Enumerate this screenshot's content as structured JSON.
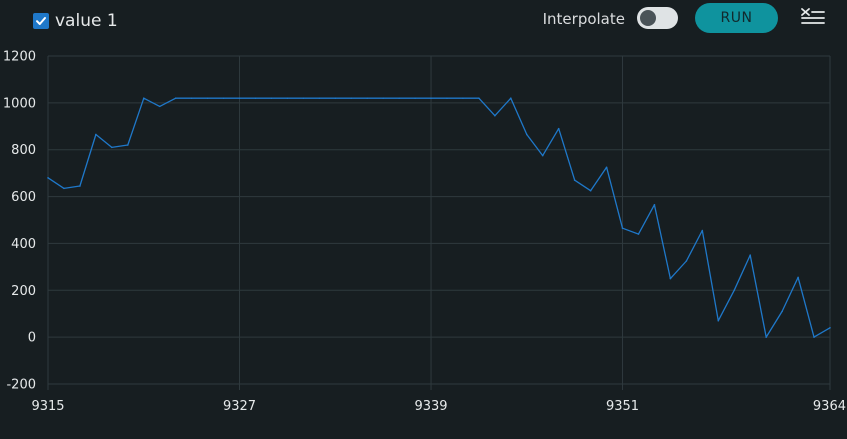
{
  "toolbar": {
    "series_label": "value 1",
    "series_checked": true,
    "interpolate_label": "Interpolate",
    "interpolate_on": false,
    "run_label": "RUN"
  },
  "colors": {
    "background": "#171e21",
    "grid": "#2f3a3e",
    "series": "#1f78c9",
    "accent": "#0f939e",
    "checkbox": "#1f78c9"
  },
  "icons": {
    "checkbox": "check-icon",
    "clear": "clear-list-icon"
  },
  "chart_data": {
    "type": "line",
    "title": "",
    "xlabel": "",
    "ylabel": "",
    "xlim": [
      9315,
      9364
    ],
    "ylim": [
      -200,
      1200
    ],
    "x_ticks": [
      9315,
      9327,
      9339,
      9351,
      9364
    ],
    "y_ticks": [
      -200,
      0,
      200,
      400,
      600,
      800,
      1000,
      1200
    ],
    "grid": true,
    "legend": "top-left",
    "series": [
      {
        "name": "value 1",
        "x": [
          9315,
          9316,
          9317,
          9318,
          9319,
          9320,
          9321,
          9322,
          9323,
          9324,
          9325,
          9326,
          9327,
          9328,
          9329,
          9330,
          9331,
          9332,
          9333,
          9334,
          9335,
          9336,
          9337,
          9338,
          9339,
          9340,
          9341,
          9342,
          9343,
          9344,
          9345,
          9346,
          9347,
          9348,
          9349,
          9350,
          9351,
          9352,
          9353,
          9354,
          9355,
          9356,
          9357,
          9358,
          9359,
          9360,
          9361,
          9362,
          9363,
          9364
        ],
        "values": [
          680,
          635,
          645,
          865,
          810,
          820,
          1020,
          985,
          1020,
          1020,
          1020,
          1020,
          1020,
          1020,
          1020,
          1020,
          1020,
          1020,
          1020,
          1020,
          1020,
          1020,
          1020,
          1020,
          1020,
          1020,
          1020,
          1020,
          945,
          1020,
          865,
          775,
          890,
          670,
          625,
          725,
          465,
          440,
          565,
          250,
          325,
          455,
          70,
          200,
          350,
          0,
          110,
          255,
          0,
          40
        ]
      }
    ]
  }
}
